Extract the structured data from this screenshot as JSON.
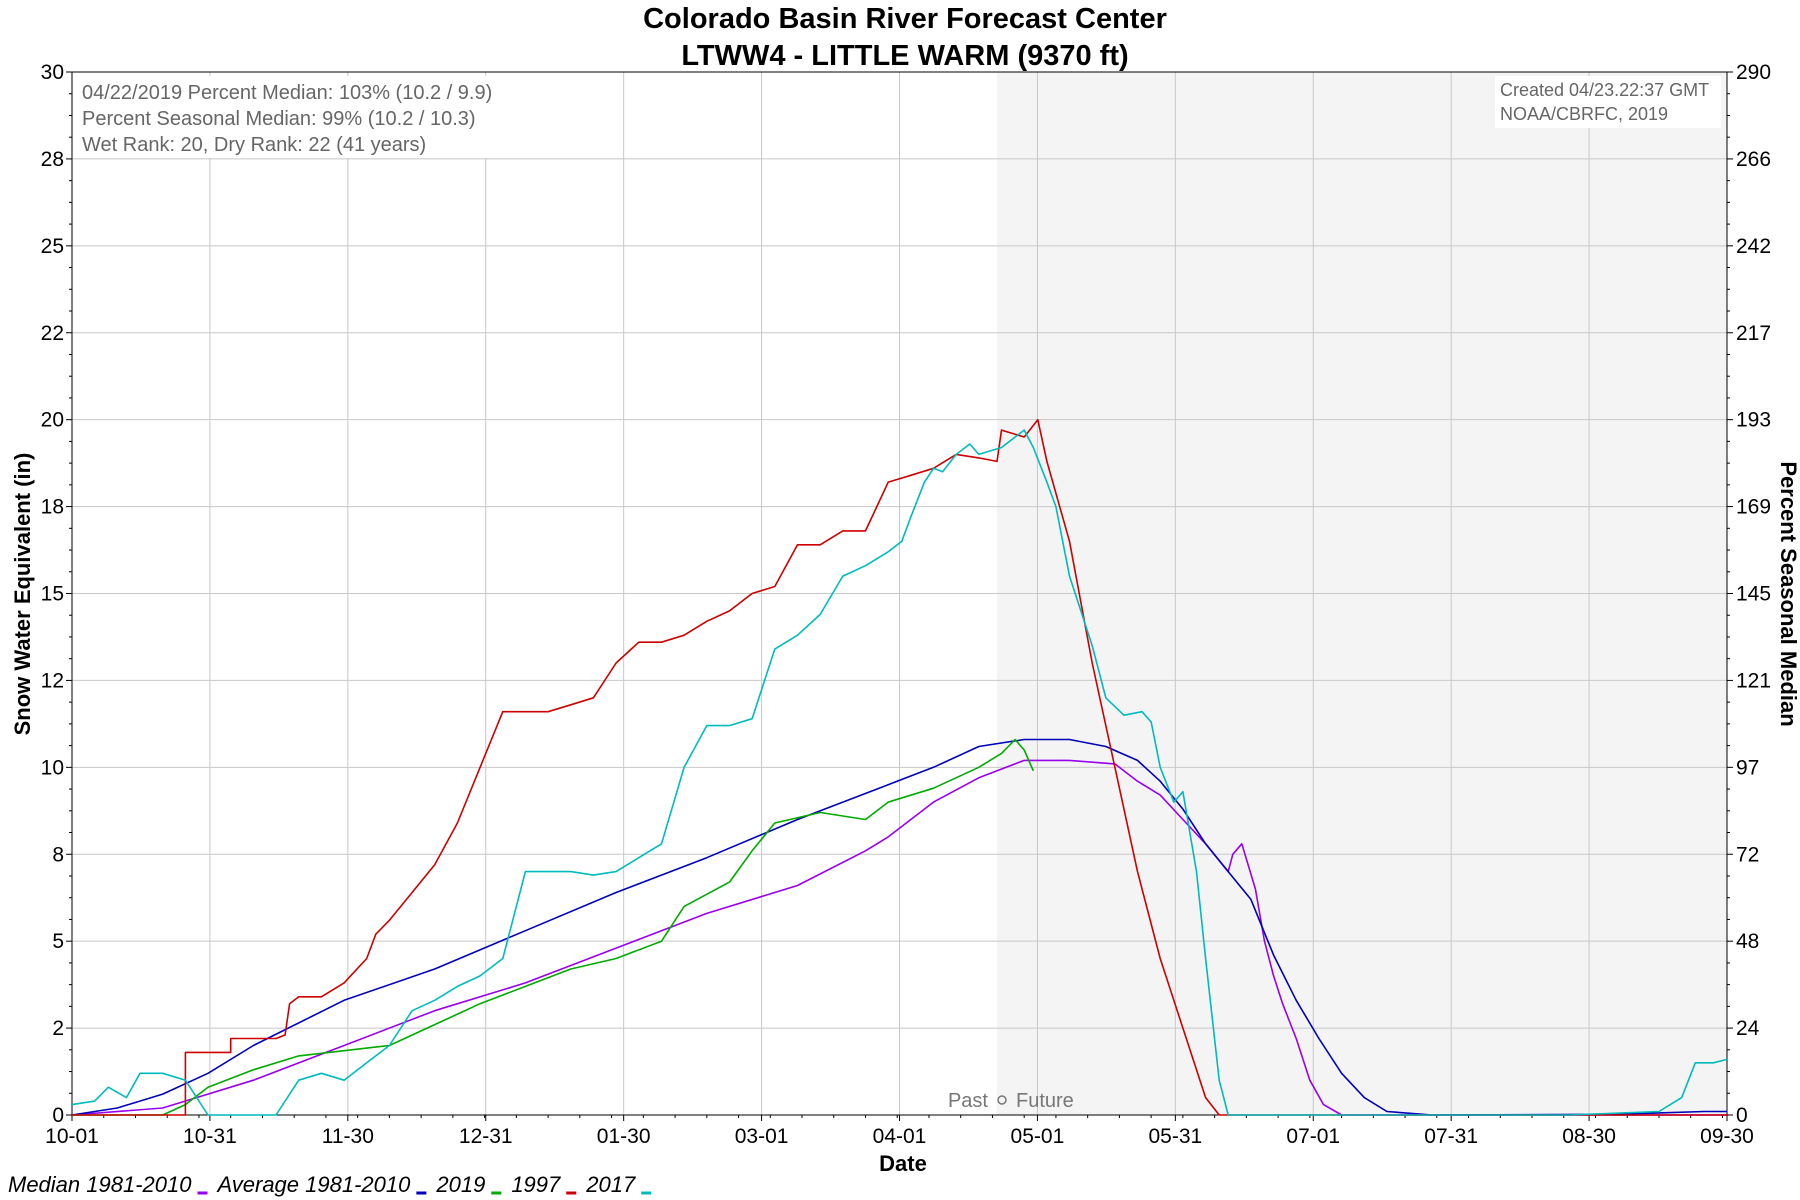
{
  "chart_data": {
    "type": "line",
    "title": "Colorado Basin River Forecast Center",
    "subtitle": "LTWW4 - LITTLE WARM (9370 ft)",
    "xlabel": "Date",
    "ylabel": "Snow Water Equivalent (in)",
    "ylabel_right": "Percent Seasonal Median",
    "ylim": [
      0,
      30
    ],
    "ylim_right": [
      0,
      290
    ],
    "yticks": [
      "0",
      "2",
      "5",
      "8",
      "10",
      "12",
      "15",
      "18",
      "20",
      "22",
      "25",
      "28",
      "30"
    ],
    "yticks_right": [
      "0",
      "24",
      "48",
      "72",
      "97",
      "121",
      "145",
      "169",
      "193",
      "217",
      "242",
      "266",
      "290"
    ],
    "xticks": [
      "10-01",
      "10-31",
      "11-30",
      "12-31",
      "01-30",
      "03-01",
      "04-01",
      "05-01",
      "05-31",
      "07-01",
      "07-31",
      "08-30",
      "09-30"
    ],
    "grid": true,
    "future_shading_start_day": 204,
    "past_future_label": {
      "past": "Past",
      "future": "Future"
    },
    "info_lines": [
      "04/22/2019 Percent Median: 103% (10.2 / 9.9)",
      "Percent Seasonal Median: 99% (10.2 / 10.3)",
      "Wet Rank: 20, Dry Rank: 22  (41 years)"
    ],
    "credit_lines": [
      "Created 04/23.22:37 GMT",
      "NOAA/CBRFC, 2019"
    ],
    "legend_position": "bottom-left",
    "series": [
      {
        "name": "Median 1981-2010",
        "color": "#9900ee",
        "points": [
          [
            0,
            0
          ],
          [
            20,
            0.2
          ],
          [
            40,
            1
          ],
          [
            60,
            2
          ],
          [
            80,
            3
          ],
          [
            100,
            3.8
          ],
          [
            120,
            4.8
          ],
          [
            140,
            5.8
          ],
          [
            160,
            6.6
          ],
          [
            175,
            7.6
          ],
          [
            180,
            8
          ],
          [
            190,
            9
          ],
          [
            200,
            9.7
          ],
          [
            210,
            10.2
          ],
          [
            220,
            10.2
          ],
          [
            230,
            10.1
          ],
          [
            235,
            9.6
          ],
          [
            240,
            9.2
          ],
          [
            245,
            8.5
          ],
          [
            250,
            7.8
          ],
          [
            255,
            7.0
          ],
          [
            256,
            7.5
          ],
          [
            258,
            7.8
          ],
          [
            261,
            6.5
          ],
          [
            263,
            5
          ],
          [
            265,
            4
          ],
          [
            267,
            3.2
          ],
          [
            270,
            2.2
          ],
          [
            273,
            1
          ],
          [
            276,
            0.3
          ],
          [
            280,
            0
          ],
          [
            365,
            0
          ]
        ]
      },
      {
        "name": "Average 1981-2010",
        "color": "#0000bb",
        "points": [
          [
            0,
            0
          ],
          [
            10,
            0.2
          ],
          [
            20,
            0.6
          ],
          [
            30,
            1.2
          ],
          [
            40,
            2
          ],
          [
            60,
            3.3
          ],
          [
            80,
            4.2
          ],
          [
            100,
            5.3
          ],
          [
            120,
            6.4
          ],
          [
            140,
            7.4
          ],
          [
            160,
            8.5
          ],
          [
            180,
            9.5
          ],
          [
            190,
            10.0
          ],
          [
            200,
            10.6
          ],
          [
            210,
            10.8
          ],
          [
            220,
            10.8
          ],
          [
            228,
            10.6
          ],
          [
            235,
            10.2
          ],
          [
            240,
            9.6
          ],
          [
            245,
            8.8
          ],
          [
            250,
            7.8
          ],
          [
            255,
            7.0
          ],
          [
            260,
            6.2
          ],
          [
            265,
            4.6
          ],
          [
            270,
            3.3
          ],
          [
            275,
            2.2
          ],
          [
            280,
            1.2
          ],
          [
            285,
            0.5
          ],
          [
            290,
            0.1
          ],
          [
            300,
            0
          ],
          [
            340,
            0.02
          ],
          [
            360,
            0.1
          ],
          [
            365,
            0.1
          ]
        ]
      },
      {
        "name": "2019",
        "color": "#00aa00",
        "points": [
          [
            0,
            0
          ],
          [
            20,
            0
          ],
          [
            25,
            0.3
          ],
          [
            30,
            0.8
          ],
          [
            40,
            1.3
          ],
          [
            50,
            1.7
          ],
          [
            70,
            2
          ],
          [
            80,
            2.6
          ],
          [
            90,
            3.2
          ],
          [
            100,
            3.7
          ],
          [
            110,
            4.2
          ],
          [
            120,
            4.5
          ],
          [
            130,
            5
          ],
          [
            135,
            6
          ],
          [
            145,
            6.7
          ],
          [
            150,
            7.6
          ],
          [
            155,
            8.4
          ],
          [
            165,
            8.7
          ],
          [
            175,
            8.5
          ],
          [
            180,
            9
          ],
          [
            190,
            9.4
          ],
          [
            200,
            10
          ],
          [
            205,
            10.4
          ],
          [
            208,
            10.8
          ],
          [
            210,
            10.5
          ],
          [
            212,
            9.9
          ]
        ]
      },
      {
        "name": "1997",
        "color": "#cc0000",
        "points": [
          [
            0,
            0
          ],
          [
            17,
            0
          ],
          [
            25,
            0
          ],
          [
            25,
            1.8
          ],
          [
            35,
            1.8
          ],
          [
            35,
            2.2
          ],
          [
            45,
            2.2
          ],
          [
            47,
            2.3
          ],
          [
            48,
            3.2
          ],
          [
            50,
            3.4
          ],
          [
            55,
            3.4
          ],
          [
            60,
            3.8
          ],
          [
            65,
            4.5
          ],
          [
            67,
            5.2
          ],
          [
            70,
            5.6
          ],
          [
            75,
            6.4
          ],
          [
            80,
            7.2
          ],
          [
            85,
            8.4
          ],
          [
            90,
            10
          ],
          [
            95,
            11.6
          ],
          [
            100,
            11.6
          ],
          [
            105,
            11.6
          ],
          [
            110,
            11.8
          ],
          [
            115,
            12
          ],
          [
            120,
            13
          ],
          [
            125,
            13.6
          ],
          [
            130,
            13.6
          ],
          [
            135,
            13.8
          ],
          [
            140,
            14.2
          ],
          [
            145,
            14.5
          ],
          [
            150,
            15
          ],
          [
            155,
            15.2
          ],
          [
            160,
            16.4
          ],
          [
            165,
            16.4
          ],
          [
            170,
            16.8
          ],
          [
            175,
            16.8
          ],
          [
            180,
            18.2
          ],
          [
            185,
            18.4
          ],
          [
            190,
            18.6
          ],
          [
            195,
            19
          ],
          [
            200,
            18.9
          ],
          [
            204,
            18.8
          ],
          [
            205,
            19.7
          ],
          [
            210,
            19.5
          ],
          [
            213,
            20.0
          ],
          [
            215,
            18.8
          ],
          [
            220,
            16.5
          ],
          [
            225,
            13
          ],
          [
            230,
            10
          ],
          [
            235,
            7
          ],
          [
            240,
            4.5
          ],
          [
            245,
            2.5
          ],
          [
            250,
            0.5
          ],
          [
            253,
            0
          ],
          [
            365,
            0
          ]
        ]
      },
      {
        "name": "2017",
        "color": "#00bbbb",
        "points": [
          [
            0,
            0.3
          ],
          [
            5,
            0.4
          ],
          [
            8,
            0.8
          ],
          [
            12,
            0.5
          ],
          [
            15,
            1.2
          ],
          [
            20,
            1.2
          ],
          [
            25,
            1
          ],
          [
            30,
            0
          ],
          [
            45,
            0
          ],
          [
            50,
            1
          ],
          [
            55,
            1.2
          ],
          [
            60,
            1
          ],
          [
            65,
            1.5
          ],
          [
            70,
            2
          ],
          [
            75,
            3
          ],
          [
            80,
            3.3
          ],
          [
            85,
            3.7
          ],
          [
            90,
            4
          ],
          [
            95,
            4.5
          ],
          [
            100,
            7
          ],
          [
            110,
            7
          ],
          [
            115,
            6.9
          ],
          [
            120,
            7
          ],
          [
            125,
            7.4
          ],
          [
            130,
            7.8
          ],
          [
            135,
            10
          ],
          [
            140,
            11.2
          ],
          [
            145,
            11.2
          ],
          [
            150,
            11.4
          ],
          [
            155,
            13.4
          ],
          [
            160,
            13.8
          ],
          [
            165,
            14.4
          ],
          [
            170,
            15.5
          ],
          [
            175,
            15.8
          ],
          [
            180,
            16.2
          ],
          [
            183,
            16.5
          ],
          [
            185,
            17.2
          ],
          [
            188,
            18.2
          ],
          [
            190,
            18.6
          ],
          [
            192,
            18.5
          ],
          [
            195,
            19
          ],
          [
            198,
            19.3
          ],
          [
            200,
            19.0
          ],
          [
            205,
            19.2
          ],
          [
            210,
            19.7
          ],
          [
            212,
            19.2
          ],
          [
            215,
            18.2
          ],
          [
            217,
            17.5
          ],
          [
            220,
            15.5
          ],
          [
            225,
            13.5
          ],
          [
            228,
            12
          ],
          [
            232,
            11.5
          ],
          [
            236,
            11.6
          ],
          [
            238,
            11.3
          ],
          [
            240,
            10
          ],
          [
            243,
            9
          ],
          [
            245,
            9.3
          ],
          [
            248,
            7
          ],
          [
            250,
            4.5
          ],
          [
            253,
            1
          ],
          [
            255,
            0
          ],
          [
            300,
            0
          ],
          [
            330,
            0
          ],
          [
            350,
            0.1
          ],
          [
            355,
            0.5
          ],
          [
            358,
            1.5
          ],
          [
            362,
            1.5
          ],
          [
            365,
            1.6
          ]
        ]
      }
    ]
  }
}
